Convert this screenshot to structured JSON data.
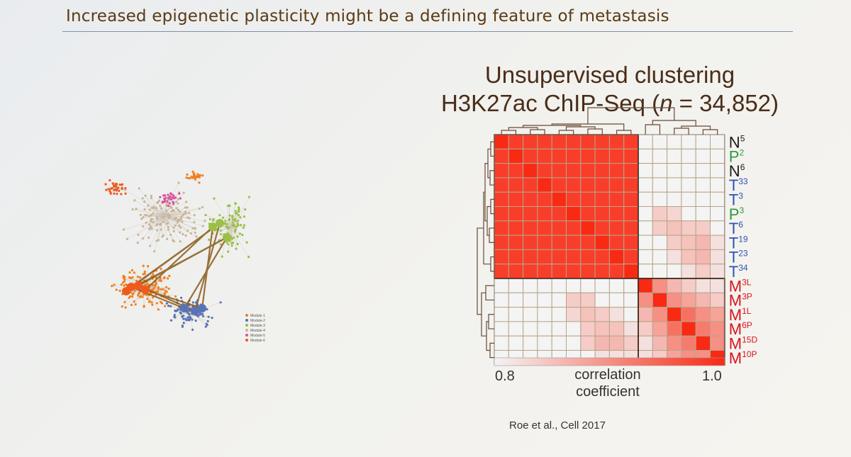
{
  "slide": {
    "title": "Increased epigenetic plasticity might be a defining feature of metastasis",
    "citation": "Roe et al., Cell 2017"
  },
  "network": {
    "legend": [
      "Module-1",
      "Module-2",
      "Module-3",
      "Module-4",
      "Module-5",
      "Module-6"
    ],
    "module_colors": [
      "#f07f1c",
      "#5873b5",
      "#9ac046",
      "#c9b498",
      "#d9509e",
      "#ee5a1e"
    ]
  },
  "chart_data": {
    "type": "heatmap",
    "title": "Unsupervised clustering",
    "subtitle_prefix": "H3K27ac ChIP-Seq (",
    "subtitle_italic": "n",
    "subtitle_suffix": " = 34,852)",
    "rows": [
      {
        "letter": "N",
        "sup": "5",
        "color": "#1a1a1a",
        "group": "primary"
      },
      {
        "letter": "P",
        "sup": "2",
        "color": "#2e9a3a",
        "group": "primary"
      },
      {
        "letter": "N",
        "sup": "6",
        "color": "#1a1a1a",
        "group": "primary"
      },
      {
        "letter": "T",
        "sup": "33",
        "color": "#2f52b8",
        "group": "primary"
      },
      {
        "letter": "T",
        "sup": "3",
        "color": "#2f52b8",
        "group": "primary"
      },
      {
        "letter": "P",
        "sup": "3",
        "color": "#2e9a3a",
        "group": "primary"
      },
      {
        "letter": "T",
        "sup": "6",
        "color": "#2f52b8",
        "group": "primary"
      },
      {
        "letter": "T",
        "sup": "19",
        "color": "#2f52b8",
        "group": "primary"
      },
      {
        "letter": "T",
        "sup": "23",
        "color": "#2f52b8",
        "group": "primary"
      },
      {
        "letter": "T",
        "sup": "34",
        "color": "#2f52b8",
        "group": "primary"
      },
      {
        "letter": "M",
        "sup": "3L",
        "color": "#d8141a",
        "group": "metastasis"
      },
      {
        "letter": "M",
        "sup": "3P",
        "color": "#d8141a",
        "group": "metastasis"
      },
      {
        "letter": "M",
        "sup": "1L",
        "color": "#d8141a",
        "group": "metastasis"
      },
      {
        "letter": "M",
        "sup": "6P",
        "color": "#d8141a",
        "group": "metastasis"
      },
      {
        "letter": "M",
        "sup": "15D",
        "color": "#d8141a",
        "group": "metastasis"
      },
      {
        "letter": "M",
        "sup": "10P",
        "color": "#d8141a",
        "group": "metastasis"
      }
    ],
    "values": [
      [
        1.0,
        0.98,
        0.98,
        0.98,
        0.98,
        0.98,
        0.98,
        0.98,
        0.98,
        0.98,
        0.8,
        0.8,
        0.8,
        0.8,
        0.8,
        0.8
      ],
      [
        0.98,
        1.0,
        0.98,
        0.98,
        0.98,
        0.98,
        0.98,
        0.98,
        0.98,
        0.98,
        0.8,
        0.8,
        0.8,
        0.8,
        0.8,
        0.8
      ],
      [
        0.98,
        0.98,
        1.0,
        0.98,
        0.98,
        0.98,
        0.98,
        0.98,
        0.98,
        0.98,
        0.8,
        0.8,
        0.8,
        0.8,
        0.8,
        0.8
      ],
      [
        0.98,
        0.98,
        0.98,
        1.0,
        0.98,
        0.98,
        0.98,
        0.98,
        0.98,
        0.98,
        0.8,
        0.8,
        0.8,
        0.8,
        0.8,
        0.8
      ],
      [
        0.98,
        0.98,
        0.98,
        0.98,
        1.0,
        0.98,
        0.98,
        0.98,
        0.98,
        0.98,
        0.8,
        0.8,
        0.8,
        0.8,
        0.8,
        0.8
      ],
      [
        0.98,
        0.98,
        0.98,
        0.98,
        0.98,
        1.0,
        0.98,
        0.98,
        0.98,
        0.98,
        0.8,
        0.84,
        0.83,
        0.8,
        0.8,
        0.8
      ],
      [
        0.98,
        0.98,
        0.98,
        0.98,
        0.98,
        0.98,
        1.0,
        0.98,
        0.98,
        0.98,
        0.8,
        0.84,
        0.85,
        0.84,
        0.84,
        0.8
      ],
      [
        0.98,
        0.98,
        0.98,
        0.98,
        0.98,
        0.98,
        0.98,
        1.0,
        0.98,
        0.98,
        0.8,
        0.8,
        0.84,
        0.85,
        0.86,
        0.82
      ],
      [
        0.98,
        0.98,
        0.98,
        0.98,
        0.98,
        0.98,
        0.98,
        0.98,
        1.0,
        0.98,
        0.8,
        0.8,
        0.82,
        0.85,
        0.86,
        0.82
      ],
      [
        0.98,
        0.98,
        0.98,
        0.98,
        0.98,
        0.98,
        0.98,
        0.98,
        0.98,
        1.0,
        0.8,
        0.8,
        0.8,
        0.82,
        0.84,
        0.82
      ],
      [
        0.8,
        0.8,
        0.8,
        0.8,
        0.8,
        0.8,
        0.8,
        0.8,
        0.8,
        0.8,
        1.0,
        0.9,
        0.86,
        0.84,
        0.82,
        0.82
      ],
      [
        0.8,
        0.8,
        0.8,
        0.8,
        0.8,
        0.84,
        0.84,
        0.8,
        0.8,
        0.8,
        0.9,
        1.0,
        0.9,
        0.88,
        0.86,
        0.84
      ],
      [
        0.8,
        0.8,
        0.8,
        0.8,
        0.8,
        0.83,
        0.85,
        0.84,
        0.82,
        0.8,
        0.86,
        0.9,
        1.0,
        0.93,
        0.9,
        0.88
      ],
      [
        0.8,
        0.8,
        0.8,
        0.8,
        0.8,
        0.8,
        0.84,
        0.85,
        0.85,
        0.82,
        0.84,
        0.88,
        0.93,
        1.0,
        0.92,
        0.9
      ],
      [
        0.8,
        0.8,
        0.8,
        0.8,
        0.8,
        0.8,
        0.84,
        0.86,
        0.86,
        0.84,
        0.82,
        0.86,
        0.9,
        0.92,
        1.0,
        0.9
      ],
      [
        0.8,
        0.8,
        0.8,
        0.8,
        0.8,
        0.8,
        0.8,
        0.82,
        0.82,
        0.82,
        0.82,
        0.84,
        0.88,
        0.9,
        0.9,
        1.0
      ]
    ],
    "colorbar": {
      "min_label": "0.8",
      "max_label": "1.0",
      "label_line1": "correlation",
      "label_line2": "coefficient",
      "range": [
        0.8,
        1.0
      ]
    },
    "colors": {
      "low": "#f4f4f4",
      "high": "#f82a14",
      "grid": "#b8a488",
      "block_border": "#3a2a1c",
      "dendrogram": "#6a4a36"
    }
  }
}
